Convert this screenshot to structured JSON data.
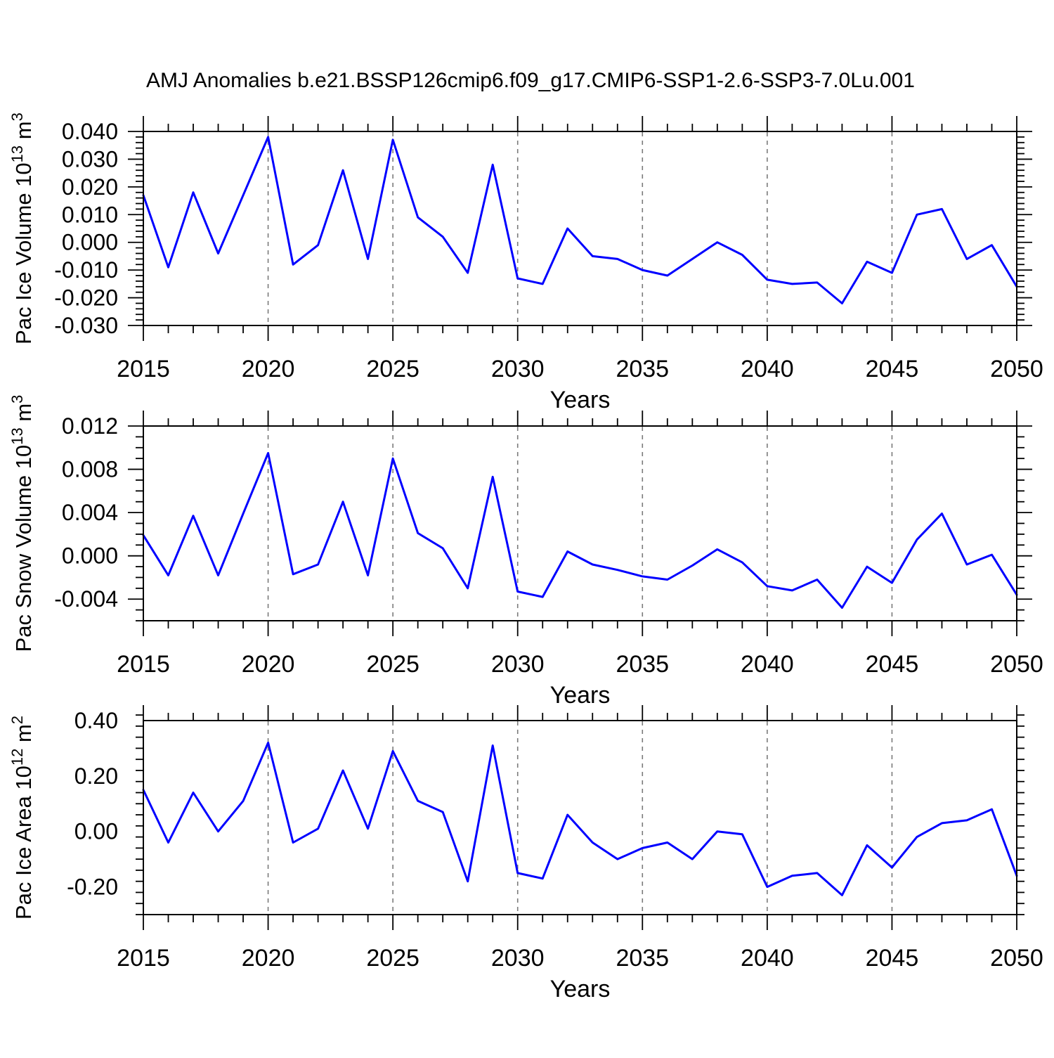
{
  "title": "AMJ Anomalies b.e21.BSSP126cmip6.f09_g17.CMIP6-SSP1-2.6-SSP3-7.0Lu.001",
  "colors": {
    "line": "#0000ff",
    "axis": "#000000",
    "gridline": "#7a7a7a",
    "background": "#ffffff",
    "text": "#000000"
  },
  "chart_data": [
    {
      "id": "pac-ice-volume",
      "type": "line",
      "ylabel_plain": "Pac Ice Volume 10^13 m^3",
      "ylabel": [
        {
          "t": "Pac Ice Volume 10"
        },
        {
          "s": "13"
        },
        {
          "t": " m"
        },
        {
          "s": "3"
        }
      ],
      "xlabel": "Years",
      "xlim": [
        2015,
        2050
      ],
      "ylim": [
        -0.03,
        0.04
      ],
      "x": [
        2015,
        2016,
        2017,
        2018,
        2019,
        2020,
        2021,
        2022,
        2023,
        2024,
        2025,
        2026,
        2027,
        2028,
        2029,
        2030,
        2031,
        2032,
        2033,
        2034,
        2035,
        2036,
        2037,
        2038,
        2039,
        2040,
        2041,
        2042,
        2043,
        2044,
        2045,
        2046,
        2047,
        2048,
        2049,
        2050
      ],
      "values": [
        0.017,
        -0.009,
        0.018,
        -0.004,
        0.017,
        0.038,
        -0.008,
        -0.001,
        0.026,
        -0.006,
        0.037,
        0.009,
        0.002,
        -0.011,
        0.028,
        -0.013,
        -0.015,
        0.005,
        -0.005,
        -0.006,
        -0.01,
        -0.012,
        -0.006,
        0.0,
        -0.0045,
        -0.0135,
        -0.015,
        -0.0145,
        -0.022,
        -0.007,
        -0.011,
        0.01,
        0.012,
        -0.006,
        -0.001,
        -0.016
      ],
      "ytick_values": [
        0.04,
        0.03,
        0.02,
        0.01,
        0.0,
        -0.01,
        -0.02,
        -0.03
      ],
      "ytick_labels": [
        "0.040",
        "0.030",
        "0.020",
        "0.010",
        "0.000",
        "-0.010",
        "-0.020",
        "-0.030"
      ],
      "y_minor_step": 0.002,
      "xtick_values": [
        2015,
        2020,
        2025,
        2030,
        2035,
        2040,
        2045,
        2050
      ],
      "xtick_labels": [
        "2015",
        "2020",
        "2025",
        "2030",
        "2035",
        "2040",
        "2045",
        "2050"
      ],
      "x_minor_step": 1,
      "grid_x": [
        2020,
        2025,
        2030,
        2035,
        2040,
        2045
      ],
      "grid_style": "vertical dashed",
      "legend": null
    },
    {
      "id": "pac-snow-volume",
      "type": "line",
      "ylabel_plain": "Pac Snow Volume 10^13 m^3",
      "ylabel": [
        {
          "t": "Pac Snow Volume 10"
        },
        {
          "s": "13"
        },
        {
          "t": " m"
        },
        {
          "s": "3"
        }
      ],
      "xlabel": "Years",
      "xlim": [
        2015,
        2050
      ],
      "ylim": [
        -0.006,
        0.012
      ],
      "x": [
        2015,
        2016,
        2017,
        2018,
        2019,
        2020,
        2021,
        2022,
        2023,
        2024,
        2025,
        2026,
        2027,
        2028,
        2029,
        2030,
        2031,
        2032,
        2033,
        2034,
        2035,
        2036,
        2037,
        2038,
        2039,
        2040,
        2041,
        2042,
        2043,
        2044,
        2045,
        2046,
        2047,
        2048,
        2049,
        2050
      ],
      "values": [
        0.0019,
        -0.0018,
        0.0037,
        -0.0018,
        0.0039,
        0.0095,
        -0.0017,
        -0.0008,
        0.005,
        -0.0018,
        0.009,
        0.0021,
        0.0007,
        -0.003,
        0.0073,
        -0.0033,
        -0.0038,
        0.0004,
        -0.0008,
        -0.0013,
        -0.0019,
        -0.0022,
        -0.0009,
        0.0006,
        -0.0006,
        -0.0028,
        -0.0032,
        -0.0022,
        -0.0048,
        -0.001,
        -0.0025,
        0.0015,
        0.0039,
        -0.0008,
        0.0001,
        -0.0036
      ],
      "ytick_values": [
        0.012,
        0.008,
        0.004,
        0.0,
        -0.004
      ],
      "ytick_labels": [
        "0.012",
        "0.008",
        "0.004",
        "0.000",
        "-0.004"
      ],
      "y_minor_step": 0.001,
      "xtick_values": [
        2015,
        2020,
        2025,
        2030,
        2035,
        2040,
        2045,
        2050
      ],
      "xtick_labels": [
        "2015",
        "2020",
        "2025",
        "2030",
        "2035",
        "2040",
        "2045",
        "2050"
      ],
      "x_minor_step": 1,
      "grid_x": [
        2020,
        2025,
        2030,
        2035,
        2040,
        2045
      ],
      "grid_style": "vertical dashed",
      "legend": null
    },
    {
      "id": "pac-ice-area",
      "type": "line",
      "ylabel_plain": "Pac Ice Area 10^12 m^2",
      "ylabel": [
        {
          "t": "Pac Ice Area 10"
        },
        {
          "s": "12"
        },
        {
          "t": " m"
        },
        {
          "s": "2"
        }
      ],
      "xlabel": "Years",
      "xlim": [
        2015,
        2050
      ],
      "ylim": [
        -0.3,
        0.4
      ],
      "x": [
        2015,
        2016,
        2017,
        2018,
        2019,
        2020,
        2021,
        2022,
        2023,
        2024,
        2025,
        2026,
        2027,
        2028,
        2029,
        2030,
        2031,
        2032,
        2033,
        2034,
        2035,
        2036,
        2037,
        2038,
        2039,
        2040,
        2041,
        2042,
        2043,
        2044,
        2045,
        2046,
        2047,
        2048,
        2049,
        2050
      ],
      "values": [
        0.15,
        -0.04,
        0.14,
        0.0,
        0.11,
        0.32,
        -0.04,
        0.01,
        0.22,
        0.01,
        0.29,
        0.11,
        0.07,
        -0.18,
        0.31,
        -0.15,
        -0.17,
        0.06,
        -0.04,
        -0.1,
        -0.06,
        -0.04,
        -0.1,
        0.0,
        -0.01,
        -0.2,
        -0.16,
        -0.15,
        -0.23,
        -0.05,
        -0.13,
        -0.02,
        0.03,
        0.04,
        0.08,
        -0.16
      ],
      "ytick_values": [
        0.4,
        0.2,
        0.0,
        -0.2
      ],
      "ytick_labels": [
        "0.40",
        "0.20",
        "0.00",
        "-0.20"
      ],
      "y_minor_step": 0.04,
      "xtick_values": [
        2015,
        2020,
        2025,
        2030,
        2035,
        2040,
        2045,
        2050
      ],
      "xtick_labels": [
        "2015",
        "2020",
        "2025",
        "2030",
        "2035",
        "2040",
        "2045",
        "2050"
      ],
      "x_minor_step": 1,
      "grid_x": [
        2020,
        2025,
        2030,
        2035,
        2040,
        2045
      ],
      "grid_style": "vertical dashed",
      "legend": null
    }
  ]
}
